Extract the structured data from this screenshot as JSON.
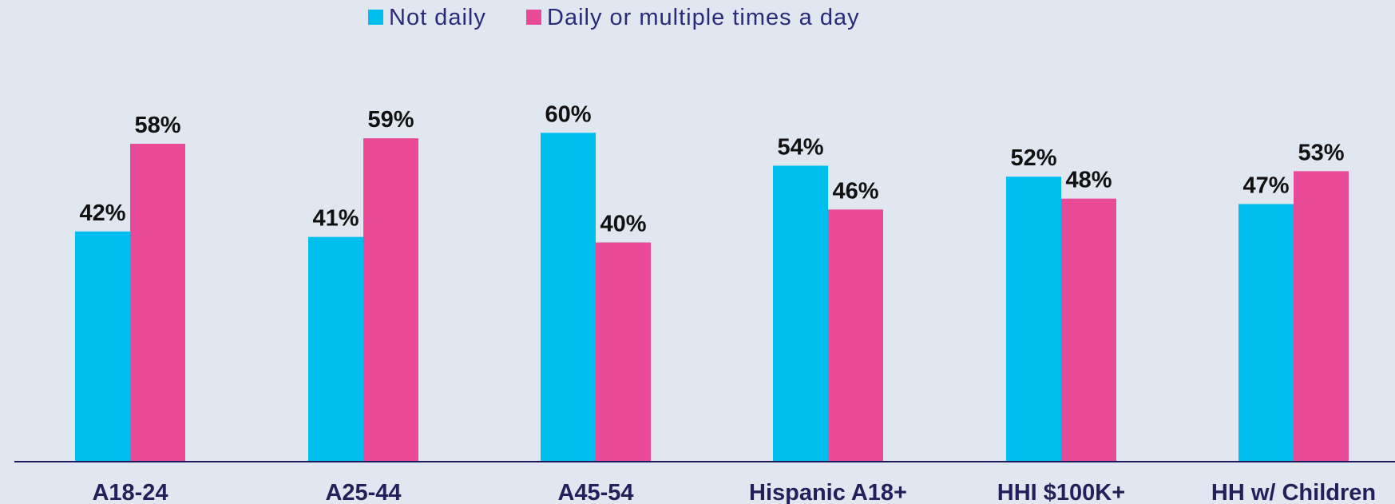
{
  "chart_data": {
    "type": "bar",
    "categories": [
      "A18-24",
      "A25-44",
      "A45-54",
      "Hispanic A18+",
      "HHI $100K+",
      "HH w/ Children"
    ],
    "series": [
      {
        "name": "Not daily",
        "values": [
          42,
          41,
          60,
          54,
          52,
          47
        ],
        "labels": [
          "42%",
          "41%",
          "60%",
          "54%",
          "52%",
          "47%"
        ]
      },
      {
        "name": "Daily or multiple times a day",
        "values": [
          58,
          59,
          40,
          46,
          48,
          53
        ],
        "labels": [
          "58%",
          "59%",
          "40%",
          "46%",
          "48%",
          "53%"
        ]
      }
    ],
    "ylim": [
      0,
      60
    ],
    "grid": false,
    "legend": "top-center",
    "colors": {
      "not_daily": "#00bfef",
      "daily": "#e94a98",
      "axis": "#1f1b5c",
      "category_text": "#231f5a",
      "value_text": "#111111",
      "legend_text": "#2b2a7a",
      "background": "#e1e7f1"
    }
  }
}
